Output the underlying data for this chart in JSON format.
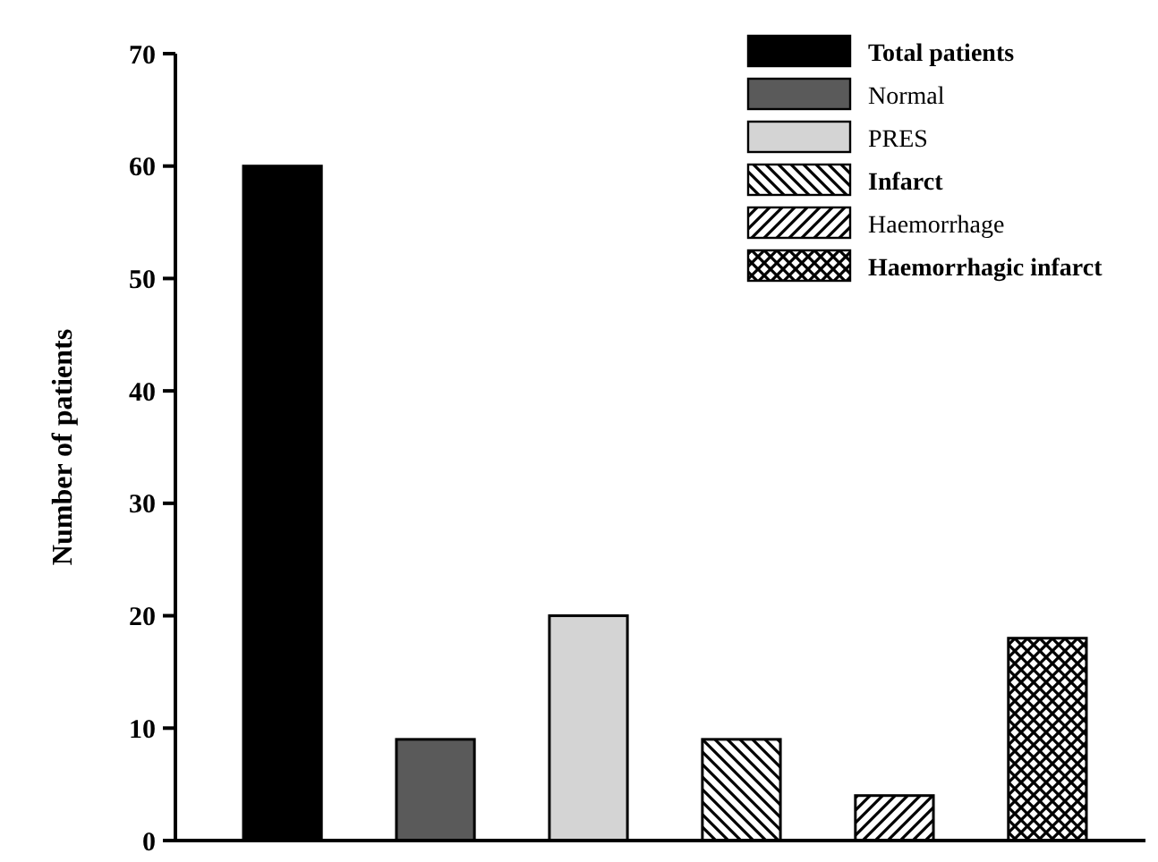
{
  "chart_data": {
    "type": "bar",
    "ylabel": "Number of patients",
    "categories": [
      null,
      null,
      null,
      null,
      null,
      null
    ],
    "series": [
      {
        "name": "Total patients",
        "color": "#000000",
        "values": [
          60,
          null,
          null,
          null,
          null,
          null
        ]
      },
      {
        "name": "Normal",
        "color": "#5a5a5a",
        "values": [
          null,
          9,
          null,
          null,
          null,
          null
        ]
      },
      {
        "name": "PRES",
        "color": "#d4d4d4",
        "values": [
          null,
          null,
          20,
          null,
          null,
          null
        ]
      },
      {
        "name": "Infarct",
        "color": "#000000",
        "values": [
          null,
          null,
          null,
          9,
          null,
          null
        ]
      },
      {
        "name": "Haemorrhage",
        "color": "#000000",
        "values": [
          null,
          null,
          null,
          null,
          4,
          null
        ]
      },
      {
        "name": "Haemorrhagic infarct",
        "color": "#000000",
        "values": [
          null,
          null,
          null,
          null,
          null,
          18
        ]
      }
    ],
    "ylim": [
      0,
      70
    ],
    "yticks": [
      0,
      10,
      20,
      30,
      40,
      50,
      60,
      70
    ],
    "grid": false,
    "legend": "top right"
  }
}
